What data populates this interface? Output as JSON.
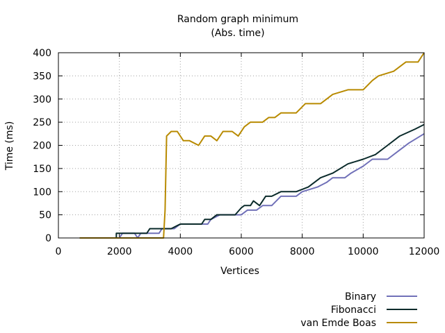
{
  "chart_data": {
    "type": "line",
    "title": "Random graph minimum",
    "subtitle": "(Abs. time)",
    "xlabel": "Vertices",
    "ylabel": "Time (ms)",
    "xlim": [
      0,
      12000
    ],
    "ylim": [
      0,
      400
    ],
    "x_ticks": [
      "0",
      "2000",
      "4000",
      "6000",
      "8000",
      "10000",
      "12000"
    ],
    "y_ticks": [
      "0",
      "50",
      "100",
      "150",
      "200",
      "250",
      "300",
      "350",
      "400"
    ],
    "grid": true,
    "legend_position": "bottom-right, below plot",
    "series": [
      {
        "name": "Binary",
        "color": "#7070b8",
        "points": [
          [
            700,
            0
          ],
          [
            2000,
            0
          ],
          [
            2100,
            10
          ],
          [
            2500,
            10
          ],
          [
            2600,
            0
          ],
          [
            2700,
            10
          ],
          [
            3300,
            10
          ],
          [
            3400,
            20
          ],
          [
            3600,
            20
          ],
          [
            3800,
            20
          ],
          [
            4000,
            30
          ],
          [
            4900,
            30
          ],
          [
            5000,
            40
          ],
          [
            5300,
            50
          ],
          [
            6000,
            50
          ],
          [
            6200,
            60
          ],
          [
            6500,
            60
          ],
          [
            6700,
            70
          ],
          [
            7000,
            70
          ],
          [
            7300,
            90
          ],
          [
            7800,
            90
          ],
          [
            8000,
            100
          ],
          [
            8500,
            110
          ],
          [
            8800,
            120
          ],
          [
            9000,
            130
          ],
          [
            9400,
            130
          ],
          [
            9600,
            140
          ],
          [
            10000,
            155
          ],
          [
            10300,
            170
          ],
          [
            10800,
            170
          ],
          [
            11200,
            190
          ],
          [
            11500,
            205
          ],
          [
            12000,
            225
          ]
        ]
      },
      {
        "name": "Fibonacci",
        "color": "#0a2a2a",
        "points": [
          [
            700,
            0
          ],
          [
            1900,
            0
          ],
          [
            1900,
            10
          ],
          [
            2900,
            10
          ],
          [
            3000,
            20
          ],
          [
            3700,
            20
          ],
          [
            4000,
            30
          ],
          [
            4700,
            30
          ],
          [
            4800,
            40
          ],
          [
            5000,
            40
          ],
          [
            5200,
            50
          ],
          [
            5800,
            50
          ],
          [
            6000,
            65
          ],
          [
            6100,
            70
          ],
          [
            6300,
            70
          ],
          [
            6400,
            80
          ],
          [
            6600,
            70
          ],
          [
            6800,
            90
          ],
          [
            7000,
            90
          ],
          [
            7300,
            100
          ],
          [
            7800,
            100
          ],
          [
            8200,
            110
          ],
          [
            8600,
            130
          ],
          [
            9000,
            140
          ],
          [
            9500,
            160
          ],
          [
            10000,
            170
          ],
          [
            10400,
            180
          ],
          [
            10800,
            200
          ],
          [
            11200,
            220
          ],
          [
            11700,
            235
          ],
          [
            12000,
            245
          ]
        ]
      },
      {
        "name": "van Emde Boas",
        "color": "#b88a00",
        "points": [
          [
            700,
            0
          ],
          [
            3450,
            0
          ],
          [
            3500,
            60
          ],
          [
            3550,
            220
          ],
          [
            3700,
            230
          ],
          [
            3900,
            230
          ],
          [
            4100,
            210
          ],
          [
            4300,
            210
          ],
          [
            4600,
            200
          ],
          [
            4800,
            220
          ],
          [
            5000,
            220
          ],
          [
            5200,
            210
          ],
          [
            5400,
            230
          ],
          [
            5700,
            230
          ],
          [
            5900,
            220
          ],
          [
            6100,
            240
          ],
          [
            6300,
            250
          ],
          [
            6700,
            250
          ],
          [
            6900,
            260
          ],
          [
            7100,
            260
          ],
          [
            7300,
            270
          ],
          [
            7800,
            270
          ],
          [
            8100,
            290
          ],
          [
            8600,
            290
          ],
          [
            8800,
            300
          ],
          [
            9000,
            310
          ],
          [
            9500,
            320
          ],
          [
            10000,
            320
          ],
          [
            10300,
            340
          ],
          [
            10500,
            350
          ],
          [
            11000,
            360
          ],
          [
            11400,
            380
          ],
          [
            11800,
            380
          ],
          [
            12000,
            400
          ]
        ]
      }
    ]
  }
}
